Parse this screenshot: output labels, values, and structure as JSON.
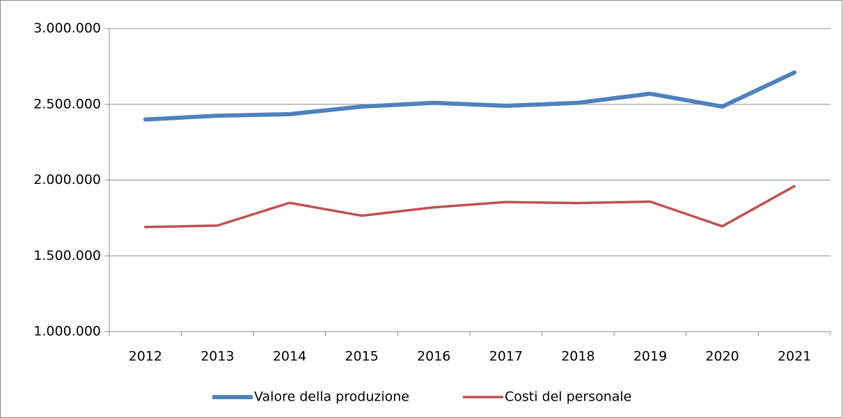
{
  "chart_data": {
    "type": "line",
    "categories": [
      "2012",
      "2013",
      "2014",
      "2015",
      "2016",
      "2017",
      "2018",
      "2019",
      "2020",
      "2021"
    ],
    "series": [
      {
        "name": "Valore della produzione",
        "color": "#4f81bd",
        "width": 6,
        "values": [
          2400000,
          2425000,
          2435000,
          2485000,
          2510000,
          2490000,
          2510000,
          2570000,
          2485000,
          2710000
        ]
      },
      {
        "name": "Costi del personale",
        "color": "#c0504d",
        "width": 3.5,
        "values": [
          1690000,
          1700000,
          1850000,
          1765000,
          1820000,
          1855000,
          1848000,
          1858000,
          1695000,
          1960000
        ]
      }
    ],
    "ylim": [
      1000000,
      3000000
    ],
    "yticks": [
      {
        "value": 1000000,
        "label": "1.000.000"
      },
      {
        "value": 1500000,
        "label": "1.500.000"
      },
      {
        "value": 2000000,
        "label": "2.000.000"
      },
      {
        "value": 2500000,
        "label": "2.500.000"
      },
      {
        "value": 3000000,
        "label": "3.000.000"
      }
    ],
    "grid": true,
    "legend": "bottom"
  }
}
